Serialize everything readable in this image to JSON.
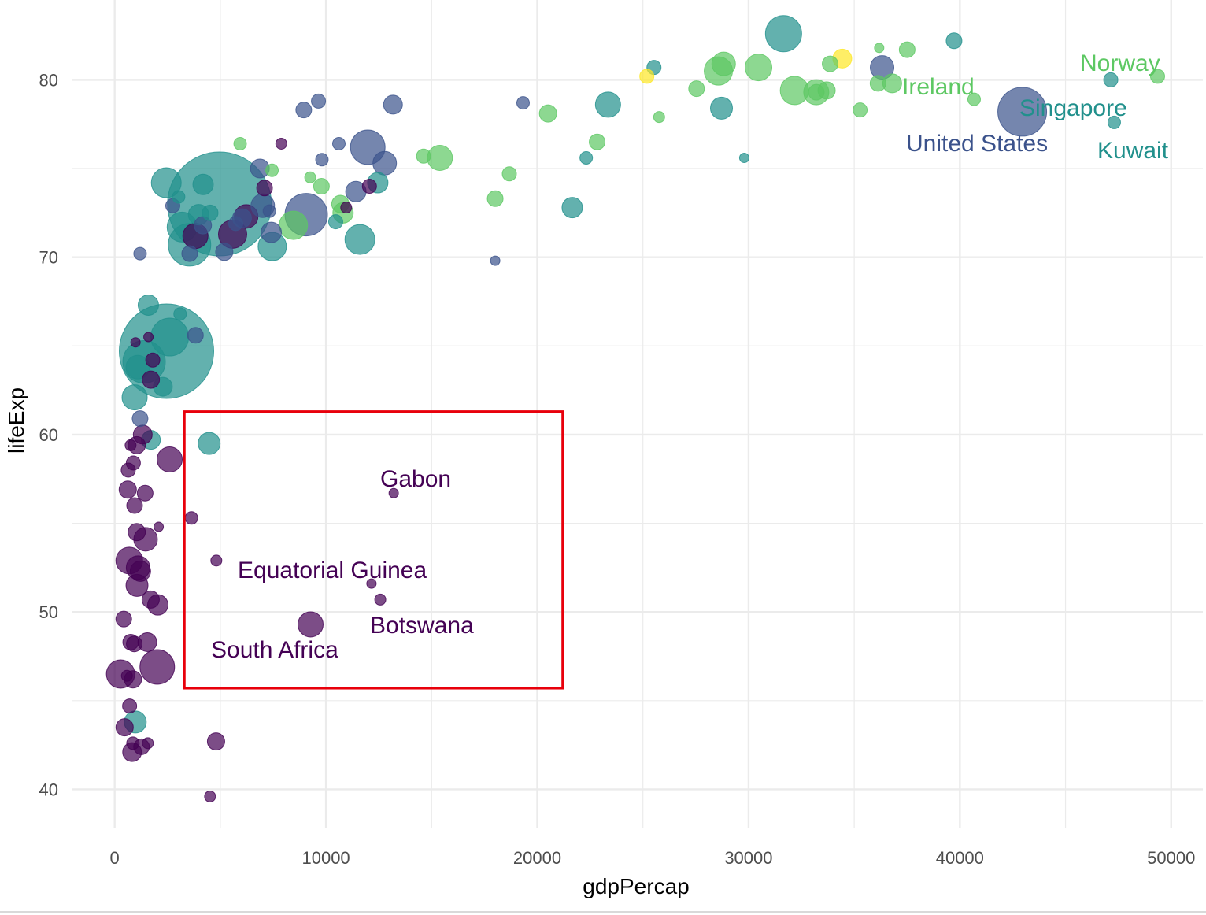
{
  "chart_data": {
    "type": "scatter",
    "title": "",
    "xlabel": "gdpPercap",
    "ylabel": "lifeExp",
    "xlim": [
      -2000,
      51500
    ],
    "ylim": [
      37.8,
      84.5
    ],
    "x_ticks": [
      0,
      10000,
      20000,
      30000,
      40000,
      50000
    ],
    "x_tick_labels": [
      "0",
      "10000",
      "20000",
      "30000",
      "40000",
      "50000"
    ],
    "y_ticks": [
      40,
      50,
      60,
      70,
      80
    ],
    "y_tick_labels": [
      "40",
      "50",
      "60",
      "70",
      "80"
    ],
    "grid": true,
    "legend": "none",
    "size_encoding": "population",
    "color_scale": "viridis by continent",
    "colors": {
      "africa": "#440154",
      "americas": "#3B528B",
      "asia": "#21908C",
      "europe": "#5DC863",
      "oceania": "#FDE725",
      "highlight_box": "#E8000B",
      "grid": "#EBEBEB",
      "tick_text": "#4D4D4D"
    },
    "points": [
      {
        "x": 974,
        "y": 43.8,
        "r": 14,
        "g": "asia"
      },
      {
        "x": 5937,
        "y": 76.4,
        "r": 8,
        "g": "europe"
      },
      {
        "x": 6223,
        "y": 72.3,
        "r": 15,
        "g": "africa"
      },
      {
        "x": 4797,
        "y": 42.7,
        "r": 11,
        "g": "africa"
      },
      {
        "x": 12779,
        "y": 75.3,
        "r": 15,
        "g": "americas"
      },
      {
        "x": 34435,
        "y": 81.2,
        "r": 12,
        "g": "oceania"
      },
      {
        "x": 36126,
        "y": 79.8,
        "r": 10,
        "g": "europe"
      },
      {
        "x": 29796,
        "y": 75.6,
        "r": 6,
        "g": "asia"
      },
      {
        "x": 1391,
        "y": 64.1,
        "r": 27,
        "g": "asia"
      },
      {
        "x": 33693,
        "y": 79.4,
        "r": 11,
        "g": "europe"
      },
      {
        "x": 1441,
        "y": 56.7,
        "r": 10,
        "g": "africa"
      },
      {
        "x": 3822,
        "y": 65.6,
        "r": 10,
        "g": "americas"
      },
      {
        "x": 7446,
        "y": 74.9,
        "r": 8,
        "g": "europe"
      },
      {
        "x": 12570,
        "y": 50.7,
        "r": 7,
        "g": "africa"
      },
      {
        "x": 9066,
        "y": 72.4,
        "r": 27,
        "g": "americas"
      },
      {
        "x": 10681,
        "y": 73.0,
        "r": 11,
        "g": "europe"
      },
      {
        "x": 1217,
        "y": 52.3,
        "r": 13,
        "g": "africa"
      },
      {
        "x": 430,
        "y": 49.6,
        "r": 10,
        "g": "africa"
      },
      {
        "x": 1714,
        "y": 59.7,
        "r": 12,
        "g": "asia"
      },
      {
        "x": 2042,
        "y": 50.4,
        "r": 13,
        "g": "africa"
      },
      {
        "x": 36319,
        "y": 80.7,
        "r": 15,
        "g": "americas"
      },
      {
        "x": 706,
        "y": 44.7,
        "r": 9,
        "g": "africa"
      },
      {
        "x": 1704,
        "y": 50.7,
        "r": 11,
        "g": "africa"
      },
      {
        "x": 13172,
        "y": 78.6,
        "r": 12,
        "g": "americas"
      },
      {
        "x": 4959,
        "y": 73.0,
        "r": 66,
        "g": "asia"
      },
      {
        "x": 7007,
        "y": 72.9,
        "r": 15,
        "g": "americas"
      },
      {
        "x": 986,
        "y": 65.2,
        "r": 6,
        "g": "africa"
      },
      {
        "x": 278,
        "y": 46.5,
        "r": 18,
        "g": "africa"
      },
      {
        "x": 3633,
        "y": 55.3,
        "r": 8,
        "g": "africa"
      },
      {
        "x": 9645,
        "y": 78.8,
        "r": 9,
        "g": "americas"
      },
      {
        "x": 1545,
        "y": 48.3,
        "r": 12,
        "g": "africa"
      },
      {
        "x": 14619,
        "y": 75.7,
        "r": 9,
        "g": "europe"
      },
      {
        "x": 8948,
        "y": 78.3,
        "r": 10,
        "g": "americas"
      },
      {
        "x": 22833,
        "y": 76.5,
        "r": 10,
        "g": "europe"
      },
      {
        "x": 35278,
        "y": 78.3,
        "r": 9,
        "g": "europe"
      },
      {
        "x": 2082,
        "y": 54.8,
        "r": 6,
        "g": "africa"
      },
      {
        "x": 6025,
        "y": 72.2,
        "r": 12,
        "g": "americas"
      },
      {
        "x": 6873,
        "y": 75.0,
        "r": 12,
        "g": "americas"
      },
      {
        "x": 5581,
        "y": 71.3,
        "r": 18,
        "g": "africa"
      },
      {
        "x": 5728,
        "y": 71.9,
        "r": 9,
        "g": "americas"
      },
      {
        "x": 12154,
        "y": 51.6,
        "r": 6,
        "g": "africa"
      },
      {
        "x": 641,
        "y": 58.0,
        "r": 9,
        "g": "africa"
      },
      {
        "x": 690,
        "y": 52.9,
        "r": 17,
        "g": "africa"
      },
      {
        "x": 33207,
        "y": 79.3,
        "r": 10,
        "g": "europe"
      },
      {
        "x": 30470,
        "y": 80.7,
        "r": 17,
        "g": "europe"
      },
      {
        "x": 13206,
        "y": 56.7,
        "r": 6,
        "g": "africa"
      },
      {
        "x": 752,
        "y": 59.4,
        "r": 7,
        "g": "africa"
      },
      {
        "x": 32170,
        "y": 79.4,
        "r": 18,
        "g": "europe"
      },
      {
        "x": 1328,
        "y": 60.0,
        "r": 12,
        "g": "africa"
      },
      {
        "x": 27538,
        "y": 79.5,
        "r": 10,
        "g": "europe"
      },
      {
        "x": 5186,
        "y": 70.3,
        "r": 11,
        "g": "americas"
      },
      {
        "x": 942,
        "y": 56.0,
        "r": 10,
        "g": "africa"
      },
      {
        "x": 579,
        "y": 46.4,
        "r": 7,
        "g": "africa"
      },
      {
        "x": 1202,
        "y": 70.2,
        "r": 8,
        "g": "americas"
      },
      {
        "x": 1202,
        "y": 60.9,
        "r": 10,
        "g": "americas"
      },
      {
        "x": 3548,
        "y": 70.2,
        "r": 10,
        "g": "americas"
      },
      {
        "x": 39725,
        "y": 82.2,
        "r": 10,
        "g": "asia"
      },
      {
        "x": 18009,
        "y": 73.3,
        "r": 10,
        "g": "europe"
      },
      {
        "x": 36181,
        "y": 81.8,
        "r": 6,
        "g": "europe"
      },
      {
        "x": 2452,
        "y": 64.7,
        "r": 60,
        "g": "asia"
      },
      {
        "x": 3541,
        "y": 70.7,
        "r": 27,
        "g": "asia"
      },
      {
        "x": 11606,
        "y": 71.0,
        "r": 19,
        "g": "asia"
      },
      {
        "x": 4471,
        "y": 59.5,
        "r": 14,
        "g": "asia"
      },
      {
        "x": 40676,
        "y": 78.9,
        "r": 8,
        "g": "europe"
      },
      {
        "x": 25523,
        "y": 80.7,
        "r": 9,
        "g": "asia"
      },
      {
        "x": 28570,
        "y": 80.5,
        "r": 18,
        "g": "europe"
      },
      {
        "x": 7321,
        "y": 72.6,
        "r": 8,
        "g": "americas"
      },
      {
        "x": 31656,
        "y": 82.6,
        "r": 23,
        "g": "asia"
      },
      {
        "x": 4519,
        "y": 72.5,
        "r": 10,
        "g": "asia"
      },
      {
        "x": 1463,
        "y": 54.1,
        "r": 15,
        "g": "africa"
      },
      {
        "x": 1593,
        "y": 67.3,
        "r": 13,
        "g": "asia"
      },
      {
        "x": 23348,
        "y": 78.6,
        "r": 16,
        "g": "asia"
      },
      {
        "x": 47307,
        "y": 77.6,
        "r": 8,
        "g": "asia"
      },
      {
        "x": 10461,
        "y": 72.0,
        "r": 9,
        "g": "asia"
      },
      {
        "x": 1569,
        "y": 42.6,
        "r": 7,
        "g": "africa"
      },
      {
        "x": 12057,
        "y": 74.0,
        "r": 9,
        "g": "africa"
      },
      {
        "x": 1045,
        "y": 59.4,
        "r": 11,
        "g": "africa"
      },
      {
        "x": 759,
        "y": 48.3,
        "r": 10,
        "g": "africa"
      },
      {
        "x": 12452,
        "y": 74.2,
        "r": 13,
        "g": "asia"
      },
      {
        "x": 1043,
        "y": 54.5,
        "r": 11,
        "g": "africa"
      },
      {
        "x": 1803,
        "y": 64.2,
        "r": 9,
        "g": "africa"
      },
      {
        "x": 10957,
        "y": 72.8,
        "r": 7,
        "g": "africa"
      },
      {
        "x": 11978,
        "y": 76.2,
        "r": 22,
        "g": "americas"
      },
      {
        "x": 3096,
        "y": 66.8,
        "r": 8,
        "g": "asia"
      },
      {
        "x": 9254,
        "y": 74.5,
        "r": 7,
        "g": "europe"
      },
      {
        "x": 3820,
        "y": 71.2,
        "r": 16,
        "g": "africa"
      },
      {
        "x": 824,
        "y": 42.1,
        "r": 12,
        "g": "africa"
      },
      {
        "x": 944,
        "y": 62.1,
        "r": 16,
        "g": "asia"
      },
      {
        "x": 4811,
        "y": 52.9,
        "r": 7,
        "g": "africa"
      },
      {
        "x": 1091,
        "y": 63.8,
        "r": 15,
        "g": "asia"
      },
      {
        "x": 36798,
        "y": 79.8,
        "r": 12,
        "g": "europe"
      },
      {
        "x": 25185,
        "y": 80.2,
        "r": 9,
        "g": "oceania"
      },
      {
        "x": 2749,
        "y": 72.9,
        "r": 9,
        "g": "americas"
      },
      {
        "x": 619,
        "y": 56.9,
        "r": 11,
        "g": "africa"
      },
      {
        "x": 2014,
        "y": 46.9,
        "r": 22,
        "g": "africa"
      },
      {
        "x": 49357,
        "y": 80.2,
        "r": 9,
        "g": "europe"
      },
      {
        "x": 22316,
        "y": 75.6,
        "r": 8,
        "g": "asia"
      },
      {
        "x": 2606,
        "y": 65.5,
        "r": 24,
        "g": "asia"
      },
      {
        "x": 9809,
        "y": 75.5,
        "r": 8,
        "g": "americas"
      },
      {
        "x": 4173,
        "y": 71.8,
        "r": 11,
        "g": "americas"
      },
      {
        "x": 7408,
        "y": 71.4,
        "r": 13,
        "g": "americas"
      },
      {
        "x": 3190,
        "y": 71.7,
        "r": 19,
        "g": "asia"
      },
      {
        "x": 15390,
        "y": 75.6,
        "r": 16,
        "g": "europe"
      },
      {
        "x": 20510,
        "y": 78.1,
        "r": 11,
        "g": "europe"
      },
      {
        "x": 19329,
        "y": 78.7,
        "r": 8,
        "g": "americas"
      },
      {
        "x": 7885,
        "y": 76.4,
        "r": 7,
        "g": "africa"
      },
      {
        "x": 10808,
        "y": 72.5,
        "r": 13,
        "g": "europe"
      },
      {
        "x": 863,
        "y": 46.2,
        "r": 11,
        "g": "africa"
      },
      {
        "x": 1598,
        "y": 65.5,
        "r": 6,
        "g": "africa"
      },
      {
        "x": 21655,
        "y": 72.8,
        "r": 13,
        "g": "asia"
      },
      {
        "x": 1712,
        "y": 63.1,
        "r": 11,
        "g": "africa"
      },
      {
        "x": 9787,
        "y": 74.0,
        "r": 10,
        "g": "europe"
      },
      {
        "x": 863,
        "y": 42.6,
        "r": 8,
        "g": "africa"
      },
      {
        "x": 47143,
        "y": 80.0,
        "r": 9,
        "g": "asia"
      },
      {
        "x": 18678,
        "y": 74.7,
        "r": 9,
        "g": "europe"
      },
      {
        "x": 25768,
        "y": 77.9,
        "r": 7,
        "g": "europe"
      },
      {
        "x": 926,
        "y": 48.2,
        "r": 10,
        "g": "africa"
      },
      {
        "x": 9270,
        "y": 49.3,
        "r": 16,
        "g": "africa"
      },
      {
        "x": 28821,
        "y": 80.9,
        "r": 15,
        "g": "europe"
      },
      {
        "x": 3970,
        "y": 72.4,
        "r": 13,
        "g": "asia"
      },
      {
        "x": 2602,
        "y": 58.6,
        "r": 16,
        "g": "africa"
      },
      {
        "x": 4513,
        "y": 39.6,
        "r": 7,
        "g": "africa"
      },
      {
        "x": 33860,
        "y": 80.9,
        "r": 10,
        "g": "europe"
      },
      {
        "x": 37506,
        "y": 81.7,
        "r": 10,
        "g": "europe"
      },
      {
        "x": 4185,
        "y": 74.1,
        "r": 13,
        "g": "asia"
      },
      {
        "x": 28718,
        "y": 78.4,
        "r": 14,
        "g": "asia"
      },
      {
        "x": 1107,
        "y": 52.5,
        "r": 15,
        "g": "africa"
      },
      {
        "x": 7458,
        "y": 70.6,
        "r": 18,
        "g": "asia"
      },
      {
        "x": 883,
        "y": 58.4,
        "r": 9,
        "g": "africa"
      },
      {
        "x": 18009,
        "y": 69.8,
        "r": 6,
        "g": "americas"
      },
      {
        "x": 7093,
        "y": 73.9,
        "r": 10,
        "g": "africa"
      },
      {
        "x": 8458,
        "y": 71.8,
        "r": 18,
        "g": "europe"
      },
      {
        "x": 1056,
        "y": 51.5,
        "r": 14,
        "g": "africa"
      },
      {
        "x": 33203,
        "y": 79.3,
        "r": 16,
        "g": "europe"
      },
      {
        "x": 42952,
        "y": 78.2,
        "r": 31,
        "g": "americas"
      },
      {
        "x": 10611,
        "y": 76.4,
        "r": 8,
        "g": "americas"
      },
      {
        "x": 11416,
        "y": 73.7,
        "r": 13,
        "g": "americas"
      },
      {
        "x": 2442,
        "y": 74.2,
        "r": 19,
        "g": "asia"
      },
      {
        "x": 3025,
        "y": 73.4,
        "r": 8,
        "g": "asia"
      },
      {
        "x": 2281,
        "y": 62.7,
        "r": 12,
        "g": "asia"
      },
      {
        "x": 1271,
        "y": 42.4,
        "r": 10,
        "g": "africa"
      },
      {
        "x": 470,
        "y": 43.5,
        "r": 11,
        "g": "africa"
      }
    ],
    "labels": [
      {
        "text": "Norway",
        "g": "europe"
      },
      {
        "text": "Ireland",
        "g": "europe"
      },
      {
        "text": "Singapore",
        "g": "asia"
      },
      {
        "text": "United States",
        "g": "americas"
      },
      {
        "text": "Kuwait",
        "g": "asia"
      },
      {
        "text": "Gabon",
        "g": "africa"
      },
      {
        "text": "Equatorial Guinea",
        "g": "africa"
      },
      {
        "text": "Botswana",
        "g": "africa"
      },
      {
        "text": "South Africa",
        "g": "africa"
      }
    ],
    "highlight_region": {
      "x": [
        3300,
        21200
      ],
      "y": [
        45.7,
        61.3
      ]
    }
  }
}
